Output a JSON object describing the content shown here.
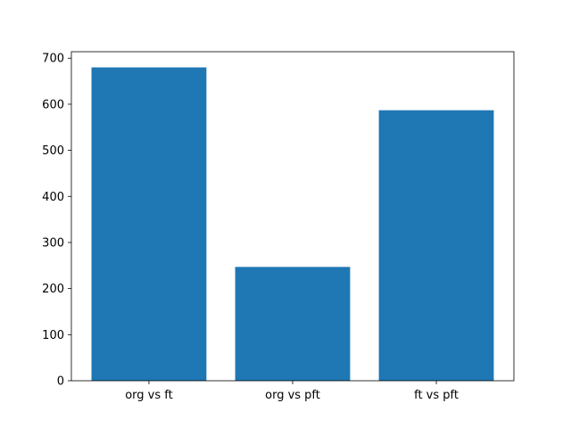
{
  "chart_data": {
    "type": "bar",
    "categories": [
      "org vs ft",
      "org vs pft",
      "ft vs pft"
    ],
    "values": [
      680,
      247,
      587
    ],
    "color": "#1f77b4",
    "ylim": [
      0,
      714
    ],
    "yticks": [
      0,
      100,
      200,
      300,
      400,
      500,
      600,
      700
    ],
    "grid": false
  }
}
